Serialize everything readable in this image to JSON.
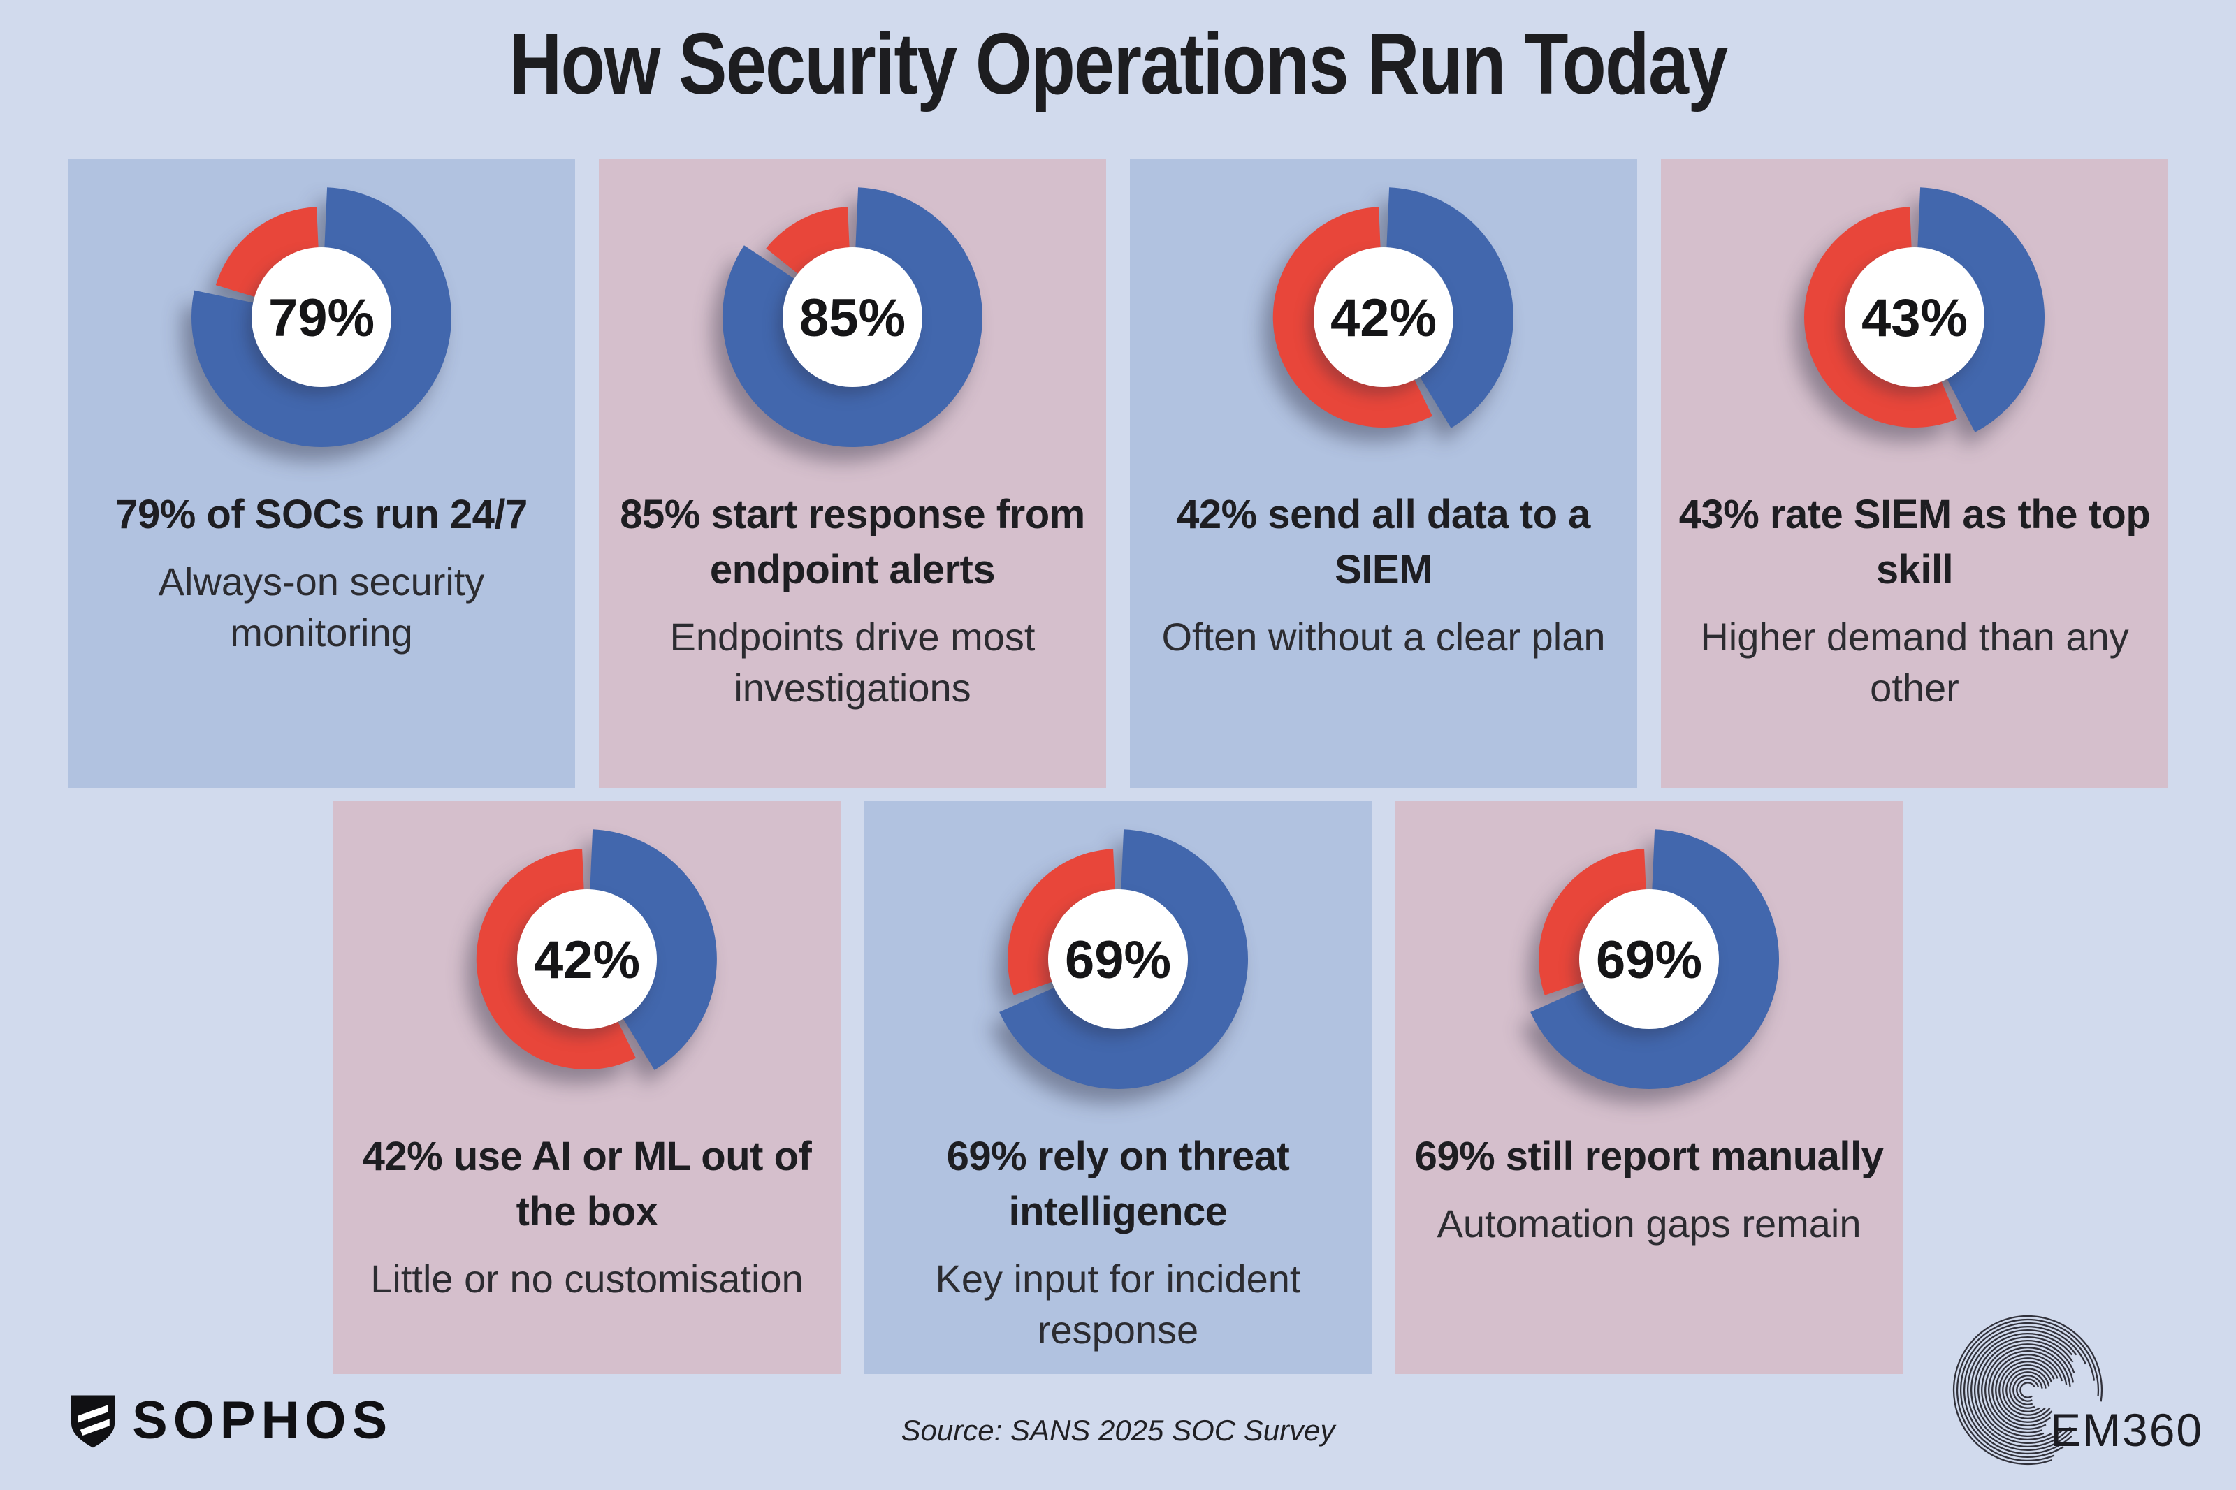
{
  "title": "How Security Operations Run Today",
  "colors": {
    "background": "#d1daed",
    "card_blue": "#b1c2e0",
    "card_pink": "#d5bfcc",
    "donut_blue": "#4267ad",
    "donut_red": "#e8463a",
    "hole_white": "#ffffff",
    "text_dark": "#1e1e22"
  },
  "chart_data": [
    {
      "type": "pie",
      "card_color": "blue",
      "labels": [
        "share",
        "remainder"
      ],
      "values": [
        79,
        21
      ],
      "center_label": "79%",
      "title": "79% of SOCs run 24/7",
      "subtitle": "Always-on security monitoring"
    },
    {
      "type": "pie",
      "card_color": "pink",
      "labels": [
        "share",
        "remainder"
      ],
      "values": [
        85,
        15
      ],
      "center_label": "85%",
      "title": "85% start response from endpoint alerts",
      "subtitle": "Endpoints drive most investigations"
    },
    {
      "type": "pie",
      "card_color": "blue",
      "labels": [
        "share",
        "remainder"
      ],
      "values": [
        42,
        58
      ],
      "center_label": "42%",
      "title": "42% send all data to a SIEM",
      "subtitle": "Often without a clear plan"
    },
    {
      "type": "pie",
      "card_color": "pink",
      "labels": [
        "share",
        "remainder"
      ],
      "values": [
        43,
        57
      ],
      "center_label": "43%",
      "title": "43% rate SIEM as the top skill",
      "subtitle": "Higher demand than any other"
    },
    {
      "type": "pie",
      "card_color": "pink",
      "labels": [
        "share",
        "remainder"
      ],
      "values": [
        42,
        58
      ],
      "center_label": "42%",
      "title": "42% use AI or ML out of the box",
      "subtitle": "Little or no customisation"
    },
    {
      "type": "pie",
      "card_color": "blue",
      "labels": [
        "share",
        "remainder"
      ],
      "values": [
        69,
        31
      ],
      "center_label": "69%",
      "title": "69% rely on threat intelligence",
      "subtitle": "Key input for incident response"
    },
    {
      "type": "pie",
      "card_color": "pink",
      "labels": [
        "share",
        "remainder"
      ],
      "values": [
        69,
        31
      ],
      "center_label": "69%",
      "title": "69% still report manually",
      "subtitle": "Automation gaps remain"
    }
  ],
  "footer": {
    "source": "Source: SANS 2025 SOC Survey",
    "sophos_label": "SOPHOS",
    "em360_label": "EM360"
  }
}
